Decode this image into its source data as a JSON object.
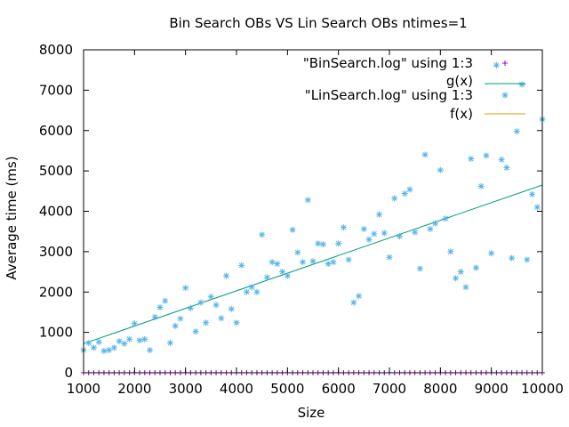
{
  "chart_data": {
    "type": "scatter",
    "title": "Bin Search OBs VS Lin Search OBs ntimes=1",
    "xlabel": "Size",
    "ylabel": "Average time (ms)",
    "xlim": [
      1000,
      10000
    ],
    "ylim": [
      0,
      8000
    ],
    "xticks": [
      1000,
      2000,
      3000,
      4000,
      5000,
      6000,
      7000,
      8000,
      9000,
      10000
    ],
    "yticks": [
      0,
      1000,
      2000,
      3000,
      4000,
      5000,
      6000,
      7000,
      8000
    ],
    "grid": false,
    "legend_position": "top-right",
    "legend": [
      {
        "label": "\"BinSearch.log\" using 1:3",
        "kind": "points",
        "glyph": "plus",
        "color": "#9400d3"
      },
      {
        "label": "g(x)",
        "kind": "line",
        "color": "#009e73"
      },
      {
        "label": "\"LinSearch.log\" using 1:3",
        "kind": "points",
        "glyph": "asterisk",
        "color": "#56b4e9"
      },
      {
        "label": "f(x)",
        "kind": "line",
        "color": "#e69f00"
      }
    ],
    "series": [
      {
        "name": "\"BinSearch.log\" using 1:3",
        "kind": "points",
        "x_start": 1000,
        "x_end": 10000,
        "x_step": 100,
        "y_constant": 0
      },
      {
        "name": "g(x)",
        "kind": "line",
        "x": [
          1000,
          10000
        ],
        "y": [
          720,
          4650
        ]
      },
      {
        "name": "\"LinSearch.log\" using 1:3",
        "kind": "points",
        "x": [
          1000,
          1100,
          1200,
          1300,
          1400,
          1500,
          1600,
          1700,
          1800,
          1900,
          2000,
          2100,
          2200,
          2300,
          2400,
          2500,
          2600,
          2700,
          2800,
          2900,
          3000,
          3100,
          3200,
          3300,
          3400,
          3500,
          3600,
          3700,
          3800,
          3900,
          4000,
          4100,
          4200,
          4300,
          4400,
          4500,
          4600,
          4700,
          4800,
          4900,
          5000,
          5100,
          5200,
          5300,
          5400,
          5500,
          5600,
          5700,
          5800,
          5900,
          6000,
          6100,
          6200,
          6300,
          6400,
          6500,
          6600,
          6700,
          6800,
          6900,
          7000,
          7100,
          7200,
          7300,
          7400,
          7500,
          7600,
          7700,
          7800,
          7900,
          8000,
          8100,
          8200,
          8300,
          8400,
          8500,
          8600,
          8700,
          8800,
          8900,
          9000,
          9100,
          9200,
          9300,
          9400,
          9500,
          9600,
          9700,
          9800,
          9900,
          10000
        ],
        "y": [
          560,
          740,
          620,
          760,
          540,
          560,
          620,
          780,
          720,
          830,
          1220,
          800,
          830,
          560,
          1380,
          1620,
          1780,
          740,
          1160,
          1340,
          2100,
          1600,
          1020,
          1740,
          1240,
          1880,
          1680,
          1350,
          2400,
          1580,
          1240,
          2660,
          2000,
          2120,
          2000,
          3420,
          2360,
          2740,
          2700,
          2500,
          2400,
          3540,
          2980,
          2740,
          4280,
          2760,
          3200,
          3180,
          2700,
          2740,
          3200,
          3600,
          2800,
          1740,
          1900,
          3560,
          3300,
          3440,
          3920,
          3460,
          2860,
          4320,
          3380,
          4440,
          4540,
          3480,
          2580,
          5400,
          3560,
          3700,
          5020,
          3820,
          3000,
          2340,
          2500,
          2120,
          5300,
          2600,
          4620,
          5380,
          2960,
          7620,
          5280,
          5080,
          2840,
          5980,
          7140,
          2800,
          4420,
          4100,
          6280
        ]
      },
      {
        "name": "f(x)",
        "kind": "line",
        "x": [
          1000,
          10000
        ],
        "y": [
          0,
          0
        ]
      }
    ]
  }
}
